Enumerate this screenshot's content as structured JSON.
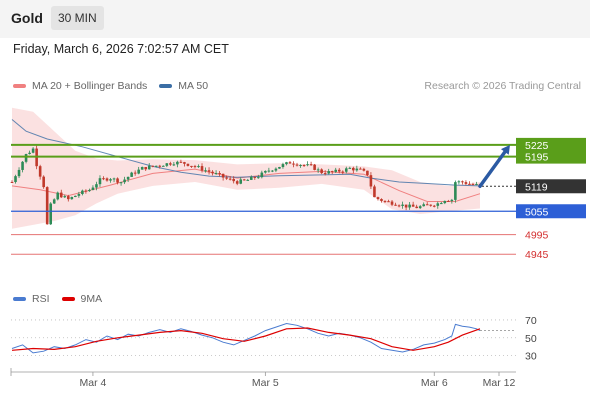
{
  "header": {
    "title": "Gold",
    "timeframe": "30 MIN"
  },
  "datetime": "Friday, March 6, 2026 7:02:57 AM CET",
  "copyright": "Research © 2026 Trading Central",
  "colors": {
    "candle_up": "#2e8b57",
    "candle_down": "#c0392b",
    "bollinger_fill": "#fadcdc",
    "ma20": "#f08080",
    "ma50": "#3b6ea5",
    "resistance": "#5a9e1a",
    "support": "#2d5fd6",
    "support_minor": "#e57373",
    "current": "#333333",
    "rsi": "#4a7bd0",
    "rsi_ma": "#dd0000",
    "arrow": "#2b5aa3"
  },
  "chart_data": [
    {
      "type": "candlestick",
      "title": "Gold",
      "legend": [
        {
          "name": "MA 20 + Bollinger Bands",
          "color": "#f08080"
        },
        {
          "name": "MA 50",
          "color": "#3b6ea5"
        }
      ],
      "x_tick_labels": [
        "Mar 4",
        "Mar 5",
        "Mar 6",
        "Mar 12"
      ],
      "ylim": [
        4925,
        5340
      ],
      "levels": [
        {
          "label": "5225",
          "value": 5225,
          "kind": "resistance"
        },
        {
          "label": "5195",
          "value": 5195,
          "kind": "resistance"
        },
        {
          "label": "5119",
          "value": 5119,
          "kind": "current"
        },
        {
          "label": "5055",
          "value": 5055,
          "kind": "support"
        },
        {
          "label": "4995",
          "value": 4995,
          "kind": "support_minor"
        },
        {
          "label": "4945",
          "value": 4945,
          "kind": "support_minor"
        }
      ],
      "close_path": [
        [
          0,
          5130
        ],
        [
          4,
          5200
        ],
        [
          6,
          5215
        ],
        [
          7,
          5175
        ],
        [
          9,
          5120
        ],
        [
          10,
          5020
        ],
        [
          11,
          5070
        ],
        [
          13,
          5100
        ],
        [
          16,
          5085
        ],
        [
          19,
          5100
        ],
        [
          22,
          5110
        ],
        [
          25,
          5135
        ],
        [
          28,
          5140
        ],
        [
          31,
          5130
        ],
        [
          34,
          5150
        ],
        [
          37,
          5165
        ],
        [
          40,
          5170
        ],
        [
          43,
          5175
        ],
        [
          46,
          5180
        ],
        [
          49,
          5178
        ],
        [
          52,
          5170
        ],
        [
          55,
          5160
        ],
        [
          58,
          5150
        ],
        [
          61,
          5138
        ],
        [
          64,
          5130
        ],
        [
          67,
          5135
        ],
        [
          70,
          5145
        ],
        [
          73,
          5160
        ],
        [
          76,
          5170
        ],
        [
          79,
          5180
        ],
        [
          82,
          5175
        ],
        [
          85,
          5170
        ],
        [
          88,
          5155
        ],
        [
          91,
          5155
        ],
        [
          94,
          5160
        ],
        [
          96,
          5165
        ],
        [
          99,
          5160
        ],
        [
          101,
          5150
        ],
        [
          103,
          5090
        ],
        [
          106,
          5080
        ],
        [
          109,
          5075
        ],
        [
          112,
          5068
        ],
        [
          115,
          5065
        ],
        [
          118,
          5070
        ],
        [
          121,
          5075
        ],
        [
          123,
          5085
        ],
        [
          125,
          5085
        ],
        [
          126,
          5130
        ],
        [
          128,
          5130
        ],
        [
          130,
          5125
        ],
        [
          132,
          5122
        ],
        [
          133,
          5119
        ]
      ],
      "candle_count": 134,
      "ma20": [
        [
          0,
          5120
        ],
        [
          8,
          5110
        ],
        [
          16,
          5095
        ],
        [
          28,
          5122
        ],
        [
          40,
          5152
        ],
        [
          52,
          5163
        ],
        [
          64,
          5140
        ],
        [
          76,
          5152
        ],
        [
          88,
          5157
        ],
        [
          100,
          5150
        ],
        [
          110,
          5108
        ],
        [
          118,
          5080
        ],
        [
          126,
          5080
        ],
        [
          133,
          5100
        ]
      ],
      "ma50": [
        [
          0,
          5290
        ],
        [
          4,
          5260
        ],
        [
          10,
          5240
        ],
        [
          20,
          5220
        ],
        [
          30,
          5195
        ],
        [
          40,
          5170
        ],
        [
          48,
          5155
        ],
        [
          56,
          5145
        ],
        [
          64,
          5142
        ],
        [
          76,
          5146
        ],
        [
          88,
          5148
        ],
        [
          96,
          5150
        ],
        [
          102,
          5140
        ],
        [
          110,
          5130
        ],
        [
          118,
          5126
        ],
        [
          126,
          5122
        ],
        [
          133,
          5120
        ]
      ],
      "bollinger_upper": [
        [
          0,
          5320
        ],
        [
          6,
          5310
        ],
        [
          12,
          5260
        ],
        [
          18,
          5210
        ],
        [
          24,
          5190
        ],
        [
          30,
          5185
        ],
        [
          40,
          5188
        ],
        [
          52,
          5186
        ],
        [
          64,
          5175
        ],
        [
          76,
          5178
        ],
        [
          88,
          5175
        ],
        [
          100,
          5170
        ],
        [
          108,
          5160
        ],
        [
          116,
          5130
        ],
        [
          124,
          5120
        ],
        [
          133,
          5130
        ]
      ],
      "bollinger_lower": [
        [
          0,
          5010
        ],
        [
          6,
          5020
        ],
        [
          12,
          5030
        ],
        [
          18,
          5045
        ],
        [
          24,
          5075
        ],
        [
          30,
          5100
        ],
        [
          40,
          5120
        ],
        [
          52,
          5130
        ],
        [
          64,
          5110
        ],
        [
          76,
          5115
        ],
        [
          88,
          5125
        ],
        [
          100,
          5110
        ],
        [
          108,
          5060
        ],
        [
          116,
          5048
        ],
        [
          124,
          5055
        ],
        [
          133,
          5062
        ]
      ]
    },
    {
      "type": "line",
      "legend": [
        {
          "name": "RSI",
          "color": "#4a7bd0"
        },
        {
          "name": "9MA",
          "color": "#dd0000"
        }
      ],
      "ylim": [
        15,
        80
      ],
      "y_ticks": [
        70,
        50,
        30
      ],
      "series": [
        {
          "name": "RSI",
          "points": [
            [
              0,
              38
            ],
            [
              3,
              42
            ],
            [
              6,
              33
            ],
            [
              9,
              35
            ],
            [
              12,
              40
            ],
            [
              15,
              38
            ],
            [
              18,
              42
            ],
            [
              21,
              48
            ],
            [
              24,
              45
            ],
            [
              27,
              52
            ],
            [
              30,
              48
            ],
            [
              33,
              54
            ],
            [
              36,
              52
            ],
            [
              39,
              56
            ],
            [
              42,
              59
            ],
            [
              45,
              56
            ],
            [
              48,
              60
            ],
            [
              51,
              57
            ],
            [
              54,
              53
            ],
            [
              57,
              50
            ],
            [
              60,
              45
            ],
            [
              63,
              42
            ],
            [
              66,
              47
            ],
            [
              69,
              52
            ],
            [
              72,
              58
            ],
            [
              75,
              62
            ],
            [
              78,
              66
            ],
            [
              81,
              64
            ],
            [
              84,
              60
            ],
            [
              87,
              55
            ],
            [
              90,
              52
            ],
            [
              93,
              55
            ],
            [
              96,
              53
            ],
            [
              99,
              50
            ],
            [
              102,
              45
            ],
            [
              105,
              38
            ],
            [
              108,
              36
            ],
            [
              111,
              34
            ],
            [
              114,
              37
            ],
            [
              117,
              42
            ],
            [
              120,
              44
            ],
            [
              123,
              48
            ],
            [
              125,
              52
            ],
            [
              126,
              65
            ],
            [
              128,
              63
            ],
            [
              130,
              62
            ],
            [
              132,
              60
            ],
            [
              133,
              58
            ]
          ]
        },
        {
          "name": "9MA",
          "points": [
            [
              0,
              36
            ],
            [
              6,
              38
            ],
            [
              12,
              37
            ],
            [
              18,
              40
            ],
            [
              24,
              46
            ],
            [
              30,
              50
            ],
            [
              36,
              53
            ],
            [
              42,
              56
            ],
            [
              48,
              58
            ],
            [
              54,
              55
            ],
            [
              60,
              49
            ],
            [
              66,
              46
            ],
            [
              72,
              52
            ],
            [
              78,
              60
            ],
            [
              84,
              61
            ],
            [
              90,
              56
            ],
            [
              96,
              53
            ],
            [
              102,
              49
            ],
            [
              108,
              40
            ],
            [
              114,
              36
            ],
            [
              120,
              40
            ],
            [
              124,
              45
            ],
            [
              128,
              53
            ],
            [
              133,
              60
            ]
          ]
        }
      ]
    }
  ]
}
